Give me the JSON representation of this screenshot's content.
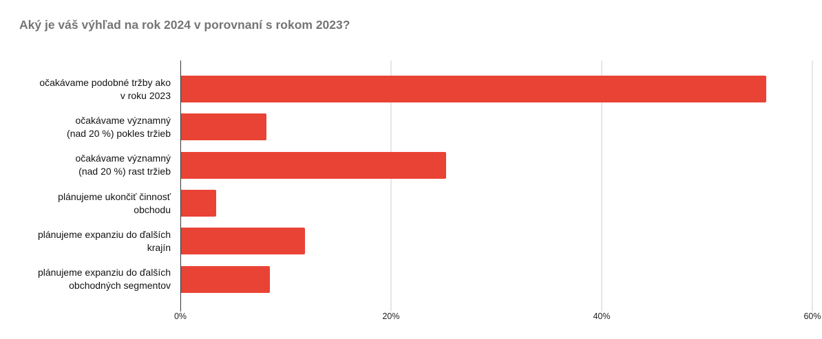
{
  "chart_data": {
    "type": "bar",
    "orientation": "horizontal",
    "title": "Aký je váš výhľad na rok 2024 v porovnaní s rokom 2023?",
    "categories": [
      "očakávame podobné tržby ako\nv roku 2023",
      "očakávame významný\n(nad 20 %) pokles tržieb",
      "očakávame významný\n(nad 20 %) rast tržieb",
      "plánujeme ukončiť činnosť\nobchodu",
      "plánujeme expanziu do ďalších\nkrajín",
      "plánujeme expanziu do ďalších\nobchodných segmentov"
    ],
    "values": [
      55.6,
      8.2,
      25.2,
      3.4,
      11.8,
      8.5
    ],
    "unit": "%",
    "xlabel": "",
    "ylabel": "",
    "xlim": [
      0,
      60
    ],
    "x_ticks": [
      "0%",
      "20%",
      "40%",
      "60%"
    ],
    "grid": true,
    "legend": "none",
    "bar_color": "#e94335",
    "title_color": "#757575",
    "gridline_color": "#cccccc",
    "axis_line_color": "#333333"
  }
}
